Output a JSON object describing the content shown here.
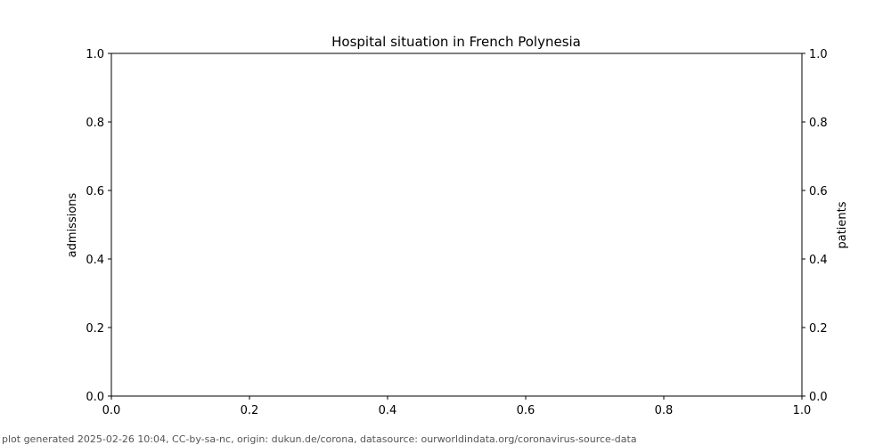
{
  "chart_data": {
    "type": "line",
    "title": "Hospital situation in French Polynesia",
    "y_left_label": "admissions",
    "y_right_label": "patients",
    "xlim": [
      0,
      1
    ],
    "ylim_left": [
      0,
      1
    ],
    "ylim_right": [
      0,
      1
    ],
    "x_ticks": [
      "0.0",
      "0.2",
      "0.4",
      "0.6",
      "0.8",
      "1.0"
    ],
    "y_left_ticks": [
      "0.0",
      "0.2",
      "0.4",
      "0.6",
      "0.8",
      "1.0"
    ],
    "y_right_ticks": [
      "0.0",
      "0.2",
      "0.4",
      "0.6",
      "0.8",
      "1.0"
    ],
    "series": [],
    "grid": false
  },
  "footer": "plot generated 2025-02-26 10:04, CC-by-sa-nc, origin: dukun.de/corona, datasource: ourworldindata.org/coronavirus-source-data"
}
